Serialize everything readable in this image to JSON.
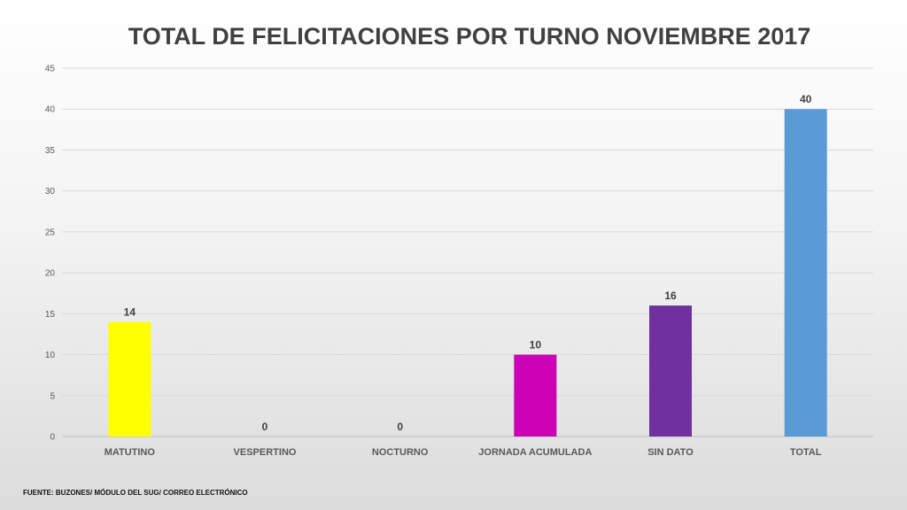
{
  "chart_data": {
    "type": "bar",
    "title": "TOTAL DE FELICITACIONES POR TURNO NOVIEMBRE 2017",
    "categories": [
      "MATUTINO",
      "VESPERTINO",
      "NOCTURNO",
      "JORNADA ACUMULADA",
      "SIN DATO",
      "TOTAL"
    ],
    "values": [
      14,
      0,
      0,
      10,
      16,
      40
    ],
    "colors": [
      "#ffff00",
      "#ffff00",
      "#ffff00",
      "#cc00b4",
      "#7030a0",
      "#5b9bd5"
    ],
    "yticks": [
      0,
      5,
      10,
      15,
      20,
      25,
      30,
      35,
      40,
      45
    ],
    "ylim": [
      0,
      45
    ],
    "grid": true,
    "legend": "none"
  },
  "footer": {
    "source": "FUENTE: BUZONES/ MÓDULO DEL SUG/ CORREO ELECTRÓNICO"
  }
}
